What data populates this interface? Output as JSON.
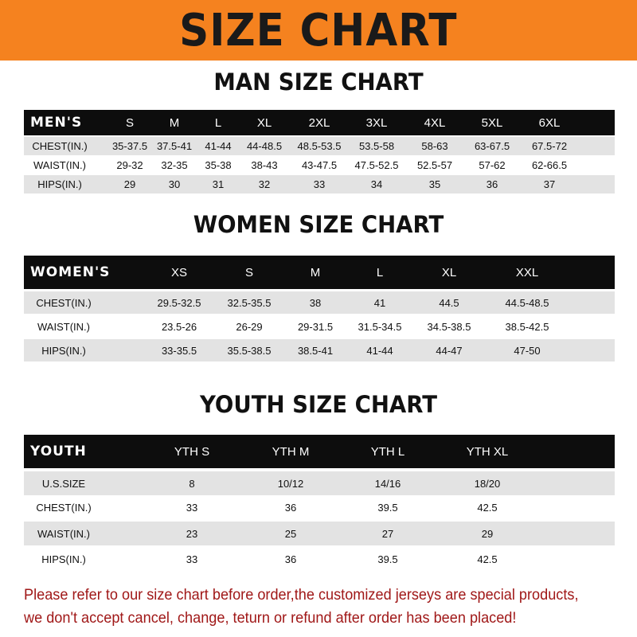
{
  "banner_title": "SIZE CHART",
  "men": {
    "title": "MAN SIZE CHART",
    "header": "MEN'S",
    "sizes": [
      "S",
      "M",
      "L",
      "XL",
      "2XL",
      "3XL",
      "4XL",
      "5XL",
      "6XL"
    ],
    "rows": [
      {
        "label": "CHEST(IN.)",
        "values": [
          "35-37.5",
          "37.5-41",
          "41-44",
          "44-48.5",
          "48.5-53.5",
          "53.5-58",
          "58-63",
          "63-67.5",
          "67.5-72"
        ]
      },
      {
        "label": "WAIST(IN.)",
        "values": [
          "29-32",
          "32-35",
          "35-38",
          "38-43",
          "43-47.5",
          "47.5-52.5",
          "52.5-57",
          "57-62",
          "62-66.5"
        ]
      },
      {
        "label": "HIPS(IN.)",
        "values": [
          "29",
          "30",
          "31",
          "32",
          "33",
          "34",
          "35",
          "36",
          "37"
        ]
      }
    ]
  },
  "women": {
    "title": "WOMEN SIZE CHART",
    "header": "WOMEN'S",
    "sizes": [
      "XS",
      "S",
      "M",
      "L",
      "XL",
      "XXL"
    ],
    "rows": [
      {
        "label": "CHEST(IN.)",
        "values": [
          "29.5-32.5",
          "32.5-35.5",
          "38",
          "41",
          "44.5",
          "44.5-48.5"
        ]
      },
      {
        "label": "WAIST(IN.)",
        "values": [
          "23.5-26",
          "26-29",
          "29-31.5",
          "31.5-34.5",
          "34.5-38.5",
          "38.5-42.5"
        ]
      },
      {
        "label": "HIPS(IN.)",
        "values": [
          "33-35.5",
          "35.5-38.5",
          "38.5-41",
          "41-44",
          "44-47",
          "47-50"
        ]
      }
    ]
  },
  "youth": {
    "title": "YOUTH SIZE CHART",
    "header": "YOUTH",
    "sizes": [
      "YTH S",
      "YTH M",
      "YTH L",
      "YTH XL"
    ],
    "rows": [
      {
        "label": "U.S.SIZE",
        "values": [
          "8",
          "10/12",
          "14/16",
          "18/20"
        ]
      },
      {
        "label": "CHEST(IN.)",
        "values": [
          "33",
          "36",
          "39.5",
          "42.5"
        ]
      },
      {
        "label": "WAIST(IN.)",
        "values": [
          "23",
          "25",
          "27",
          "29"
        ]
      },
      {
        "label": "HIPS(IN.)",
        "values": [
          "33",
          "36",
          "39.5",
          "42.5"
        ]
      }
    ]
  },
  "note": "Please refer to our size chart before order,the customized jerseys are special products, we don't accept cancel, change, teturn or refund after order has been placed!",
  "colors": {
    "banner": "#f5821f",
    "header_row": "#0d0d0d",
    "note_text": "#a01818"
  }
}
